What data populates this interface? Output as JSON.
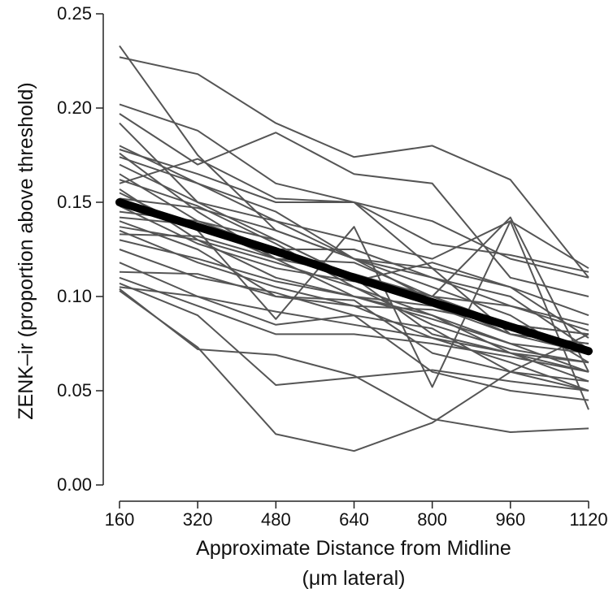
{
  "chart_data": {
    "type": "line",
    "title": "",
    "xlabel_line1": "Approximate Distance from Midline",
    "xlabel_line2": "(μm lateral)",
    "ylabel": "ZENK–ir (proportion above threshold)",
    "x": [
      160,
      320,
      480,
      640,
      800,
      960,
      1120
    ],
    "xticks": [
      "160",
      "320",
      "480",
      "640",
      "800",
      "960",
      "1120"
    ],
    "ylim": [
      0,
      0.25
    ],
    "yticks": [
      "0.00",
      "0.05",
      "0.10",
      "0.15",
      "0.20",
      "0.25"
    ],
    "grid": false,
    "legend": "none",
    "colors": {
      "individual": "#555555",
      "mean": "#000000"
    },
    "mean_series": {
      "values": [
        0.15,
        0.137,
        0.124,
        0.11,
        0.097,
        0.084,
        0.071
      ]
    },
    "series": [
      {
        "values": [
          0.233,
          0.175,
          0.135,
          0.12,
          0.11,
          0.095,
          0.085
        ]
      },
      {
        "values": [
          0.227,
          0.218,
          0.192,
          0.174,
          0.18,
          0.162,
          0.11
        ]
      },
      {
        "values": [
          0.202,
          0.188,
          0.16,
          0.15,
          0.14,
          0.12,
          0.11
        ]
      },
      {
        "values": [
          0.197,
          0.17,
          0.187,
          0.165,
          0.16,
          0.11,
          0.1
        ]
      },
      {
        "values": [
          0.192,
          0.15,
          0.14,
          0.13,
          0.12,
          0.14,
          0.115
        ]
      },
      {
        "values": [
          0.18,
          0.16,
          0.14,
          0.12,
          0.115,
          0.105,
          0.09
        ]
      },
      {
        "values": [
          0.178,
          0.165,
          0.15,
          0.15,
          0.128,
          0.122,
          0.113
        ]
      },
      {
        "values": [
          0.176,
          0.145,
          0.12,
          0.118,
          0.1,
          0.142,
          0.06
        ]
      },
      {
        "values": [
          0.174,
          0.16,
          0.145,
          0.12,
          0.098,
          0.08,
          0.075
        ]
      },
      {
        "values": [
          0.17,
          0.15,
          0.13,
          0.11,
          0.1,
          0.085,
          0.08
        ]
      },
      {
        "values": [
          0.165,
          0.14,
          0.125,
          0.125,
          0.11,
          0.1,
          0.072
        ]
      },
      {
        "values": [
          0.162,
          0.148,
          0.128,
          0.105,
          0.09,
          0.075,
          0.06
        ]
      },
      {
        "values": [
          0.16,
          0.173,
          0.152,
          0.15,
          0.115,
          0.08,
          0.07
        ]
      },
      {
        "values": [
          0.157,
          0.13,
          0.11,
          0.1,
          0.09,
          0.07,
          0.055
        ]
      },
      {
        "values": [
          0.155,
          0.135,
          0.088,
          0.137,
          0.052,
          0.14,
          0.04
        ]
      },
      {
        "values": [
          0.152,
          0.147,
          0.135,
          0.12,
          0.105,
          0.09,
          0.065
        ]
      },
      {
        "values": [
          0.148,
          0.128,
          0.115,
          0.108,
          0.118,
          0.105,
          0.078
        ]
      },
      {
        "values": [
          0.145,
          0.14,
          0.13,
          0.11,
          0.08,
          0.07,
          0.06
        ]
      },
      {
        "values": [
          0.142,
          0.138,
          0.12,
          0.1,
          0.095,
          0.08,
          0.075
        ]
      },
      {
        "values": [
          0.14,
          0.125,
          0.1,
          0.098,
          0.07,
          0.06,
          0.05
        ]
      },
      {
        "values": [
          0.137,
          0.13,
          0.118,
          0.105,
          0.085,
          0.072,
          0.065
        ]
      },
      {
        "values": [
          0.135,
          0.118,
          0.105,
          0.095,
          0.078,
          0.065,
          0.05
        ]
      },
      {
        "values": [
          0.133,
          0.132,
          0.12,
          0.112,
          0.1,
          0.095,
          0.082
        ]
      },
      {
        "values": [
          0.13,
          0.12,
          0.108,
          0.1,
          0.088,
          0.075,
          0.07
        ]
      },
      {
        "values": [
          0.125,
          0.11,
          0.102,
          0.09,
          0.083,
          0.06,
          0.055
        ]
      },
      {
        "values": [
          0.118,
          0.1,
          0.085,
          0.09,
          0.06,
          0.05,
          0.045
        ]
      },
      {
        "values": [
          0.113,
          0.112,
          0.1,
          0.095,
          0.093,
          0.085,
          0.08
        ]
      },
      {
        "values": [
          0.11,
          0.095,
          0.08,
          0.08,
          0.075,
          0.068,
          0.06
        ]
      },
      {
        "values": [
          0.107,
          0.09,
          0.053,
          0.057,
          0.061,
          0.055,
          0.05
        ]
      },
      {
        "values": [
          0.105,
          0.1,
          0.092,
          0.085,
          0.078,
          0.07,
          0.065
        ]
      },
      {
        "values": [
          0.104,
          0.072,
          0.069,
          0.058,
          0.035,
          0.028,
          0.03
        ]
      },
      {
        "values": [
          0.103,
          0.073,
          0.027,
          0.018,
          0.033,
          0.06,
          0.08
        ]
      }
    ]
  }
}
